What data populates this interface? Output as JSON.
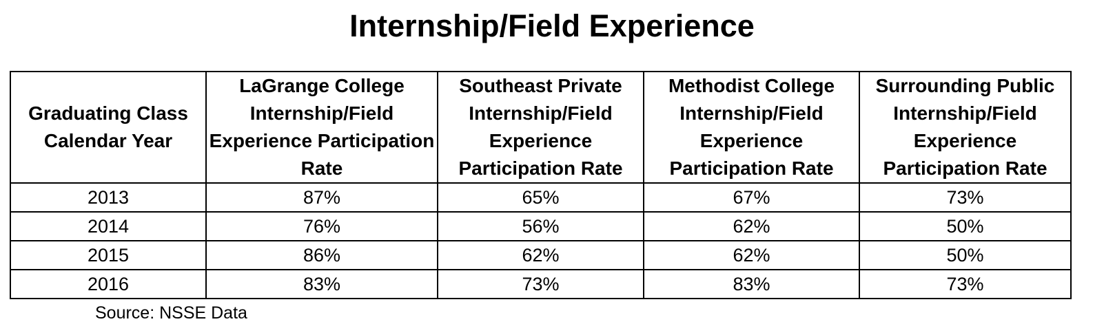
{
  "title": "Internship/Field Experience",
  "table": {
    "headers": [
      "Graduating Class Calendar Year",
      "LaGrange College Internship/Field Experience Participation Rate",
      "Southeast Private Internship/Field Experience Participation Rate",
      "Methodist College Internship/Field Experience Participation Rate",
      "Surrounding Public Internship/Field Experience Participation Rate"
    ],
    "rows": [
      [
        "2013",
        "87%",
        "65%",
        "67%",
        "73%"
      ],
      [
        "2014",
        "76%",
        "56%",
        "62%",
        "50%"
      ],
      [
        "2015",
        "86%",
        "62%",
        "62%",
        "50%"
      ],
      [
        "2016",
        "83%",
        "73%",
        "83%",
        "73%"
      ]
    ]
  },
  "source": "Source:  NSSE Data"
}
